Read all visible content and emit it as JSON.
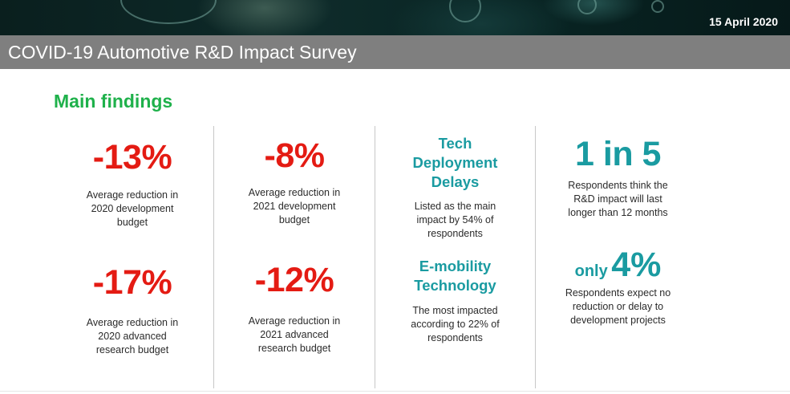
{
  "header": {
    "date": "15 April 2020",
    "title": "COVID-19 Automotive R&D Impact Survey"
  },
  "section_heading": "Main findings",
  "columns": [
    {
      "stats": [
        {
          "value": "-13%",
          "lines": [
            "Average reduction in",
            "2020 development",
            "budget"
          ]
        },
        {
          "value": "-17%",
          "lines": [
            "Average reduction in",
            "2020 advanced",
            "research budget"
          ]
        }
      ]
    },
    {
      "stats": [
        {
          "value": "-8%",
          "lines": [
            "Average reduction in",
            "2021 development",
            "budget"
          ]
        },
        {
          "value": "-12%",
          "lines": [
            "Average reduction in",
            "2021 advanced",
            "research budget"
          ]
        }
      ]
    },
    {
      "stats": [
        {
          "heading": [
            "Tech",
            "Deployment",
            "Delays"
          ],
          "lines": [
            "Listed as the main",
            "impact by 54% of",
            "respondents"
          ]
        },
        {
          "heading": [
            "E-mobility",
            "Technology"
          ],
          "lines": [
            "The most impacted",
            "according to 22% of",
            "respondents"
          ]
        }
      ]
    },
    {
      "stats": [
        {
          "value": "1 in 5",
          "lines": [
            "Respondents think the",
            "R&D impact will last",
            "longer than 12 months"
          ]
        },
        {
          "prefix": "only",
          "value": "4%",
          "lines": [
            "Respondents expect no",
            "reduction or delay to",
            "development projects"
          ]
        }
      ]
    }
  ],
  "colors": {
    "accent_green": "#1fb14b",
    "stat_red": "#e41b13",
    "stat_teal": "#1a9ba1",
    "title_bar": "#7f7f7f"
  }
}
